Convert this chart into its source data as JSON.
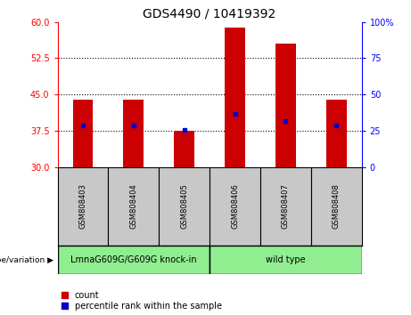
{
  "title": "GDS4490 / 10419392",
  "samples": [
    "GSM808403",
    "GSM808404",
    "GSM808405",
    "GSM808406",
    "GSM808407",
    "GSM808408"
  ],
  "bar_bottom": 30,
  "bar_tops": [
    44.0,
    44.0,
    37.5,
    58.8,
    55.5,
    44.0
  ],
  "percentile_values": [
    38.5,
    38.5,
    37.6,
    41.0,
    39.5,
    38.5
  ],
  "ylim_left": [
    30,
    60
  ],
  "ylim_right": [
    0,
    100
  ],
  "yticks_left": [
    30,
    37.5,
    45,
    52.5,
    60
  ],
  "yticks_right": [
    0,
    25,
    50,
    75,
    100
  ],
  "ytick_right_labels": [
    "0",
    "25",
    "50",
    "75",
    "100%"
  ],
  "grid_lines": [
    37.5,
    45,
    52.5
  ],
  "bar_color": "#cc0000",
  "percentile_color": "#0000cc",
  "bar_width": 0.4,
  "group1_label": "LmnaG609G/G609G knock-in",
  "group2_label": "wild type",
  "group_bg_color": "#90ee90",
  "sample_bg_color": "#c8c8c8",
  "genotype_label": "genotype/variation",
  "legend_count": "count",
  "legend_percentile": "percentile rank within the sample",
  "title_fontsize": 10,
  "axis_tick_fontsize": 7,
  "sample_fontsize": 6,
  "group_fontsize": 7,
  "legend_fontsize": 7
}
